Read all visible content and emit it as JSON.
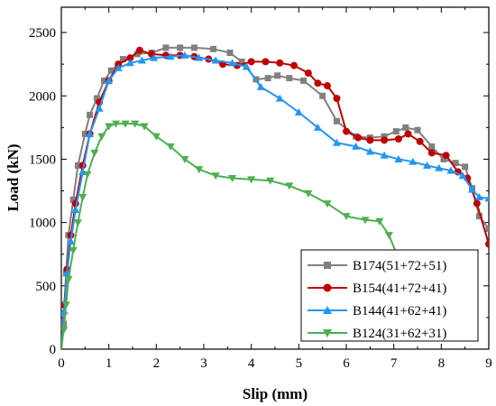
{
  "chart_data": {
    "type": "line",
    "xlabel": "Slip (mm)",
    "ylabel": "Load (kN)",
    "xlim": [
      0,
      9
    ],
    "ylim": [
      0,
      2700
    ],
    "xticks": [
      "0",
      "1",
      "2",
      "3",
      "4",
      "5",
      "6",
      "7",
      "8",
      "9"
    ],
    "yticks": [
      "0",
      "500",
      "1000",
      "1500",
      "2000",
      "2500"
    ],
    "grid": false,
    "legend_position": "bottom-right",
    "series": [
      {
        "name": "B174(51+72+51)",
        "color": "#808080",
        "marker": "square",
        "x": [
          0,
          0.05,
          0.1,
          0.15,
          0.25,
          0.35,
          0.5,
          0.6,
          0.75,
          0.9,
          1.05,
          1.3,
          1.6,
          1.9,
          2.2,
          2.5,
          2.8,
          3.2,
          3.55,
          3.8,
          4.1,
          4.35,
          4.55,
          4.8,
          5.1,
          5.5,
          5.8,
          6.2,
          6.5,
          6.8,
          7.05,
          7.25,
          7.5,
          7.8,
          8.05,
          8.3,
          8.5,
          8.65,
          8.8,
          9.0
        ],
        "y": [
          0,
          200,
          600,
          900,
          1180,
          1450,
          1700,
          1850,
          1980,
          2120,
          2200,
          2290,
          2330,
          2340,
          2380,
          2380,
          2380,
          2370,
          2340,
          2270,
          2130,
          2140,
          2160,
          2140,
          2120,
          2000,
          1800,
          1680,
          1670,
          1680,
          1720,
          1750,
          1730,
          1600,
          1500,
          1470,
          1440,
          1270,
          1050,
          950
        ]
      },
      {
        "name": "B154(41+72+41)",
        "color": "#c00000",
        "marker": "circle",
        "x": [
          0,
          0.06,
          0.12,
          0.2,
          0.3,
          0.45,
          0.6,
          0.8,
          1.0,
          1.2,
          1.45,
          1.65,
          1.9,
          2.2,
          2.5,
          2.8,
          3.1,
          3.4,
          3.7,
          4.0,
          4.3,
          4.6,
          4.9,
          5.2,
          5.4,
          5.6,
          5.8,
          6.0,
          6.25,
          6.5,
          6.8,
          7.1,
          7.3,
          7.55,
          7.8,
          8.1,
          8.35,
          8.55,
          8.75,
          9.0
        ],
        "y": [
          0,
          350,
          630,
          900,
          1150,
          1450,
          1700,
          1950,
          2120,
          2250,
          2300,
          2360,
          2330,
          2320,
          2320,
          2310,
          2290,
          2250,
          2240,
          2270,
          2270,
          2260,
          2240,
          2180,
          2100,
          2080,
          1980,
          1720,
          1670,
          1650,
          1650,
          1660,
          1700,
          1640,
          1550,
          1530,
          1400,
          1350,
          1150,
          830
        ]
      },
      {
        "name": "B144(41+62+41)",
        "color": "#2196f3",
        "marker": "triangle-up",
        "x": [
          0,
          0.06,
          0.12,
          0.2,
          0.3,
          0.45,
          0.6,
          0.8,
          1.0,
          1.2,
          1.45,
          1.7,
          1.95,
          2.3,
          2.6,
          2.9,
          3.25,
          3.6,
          3.9,
          4.2,
          4.6,
          5.0,
          5.4,
          5.8,
          6.2,
          6.5,
          6.8,
          7.1,
          7.4,
          7.7,
          7.95,
          8.2,
          8.45,
          8.65,
          8.8,
          9.0
        ],
        "y": [
          0,
          300,
          600,
          850,
          1100,
          1400,
          1700,
          1900,
          2120,
          2220,
          2260,
          2280,
          2300,
          2310,
          2320,
          2300,
          2280,
          2260,
          2230,
          2070,
          1980,
          1870,
          1750,
          1630,
          1600,
          1560,
          1530,
          1500,
          1480,
          1450,
          1430,
          1410,
          1370,
          1260,
          1200,
          1190
        ]
      },
      {
        "name": "B124(31+62+31)",
        "color": "#4caf50",
        "marker": "triangle-down",
        "x": [
          0,
          0.05,
          0.1,
          0.15,
          0.25,
          0.35,
          0.45,
          0.55,
          0.7,
          0.85,
          1.0,
          1.15,
          1.35,
          1.55,
          1.75,
          2.0,
          2.3,
          2.6,
          2.9,
          3.25,
          3.6,
          4.0,
          4.4,
          4.8,
          5.2,
          5.6,
          6.0,
          6.4,
          6.7,
          6.9,
          7.05
        ],
        "y": [
          0,
          150,
          350,
          550,
          780,
          1000,
          1200,
          1380,
          1550,
          1680,
          1760,
          1780,
          1780,
          1780,
          1760,
          1680,
          1600,
          1500,
          1420,
          1370,
          1350,
          1340,
          1330,
          1290,
          1230,
          1150,
          1050,
          1020,
          1010,
          900,
          760
        ]
      }
    ]
  }
}
